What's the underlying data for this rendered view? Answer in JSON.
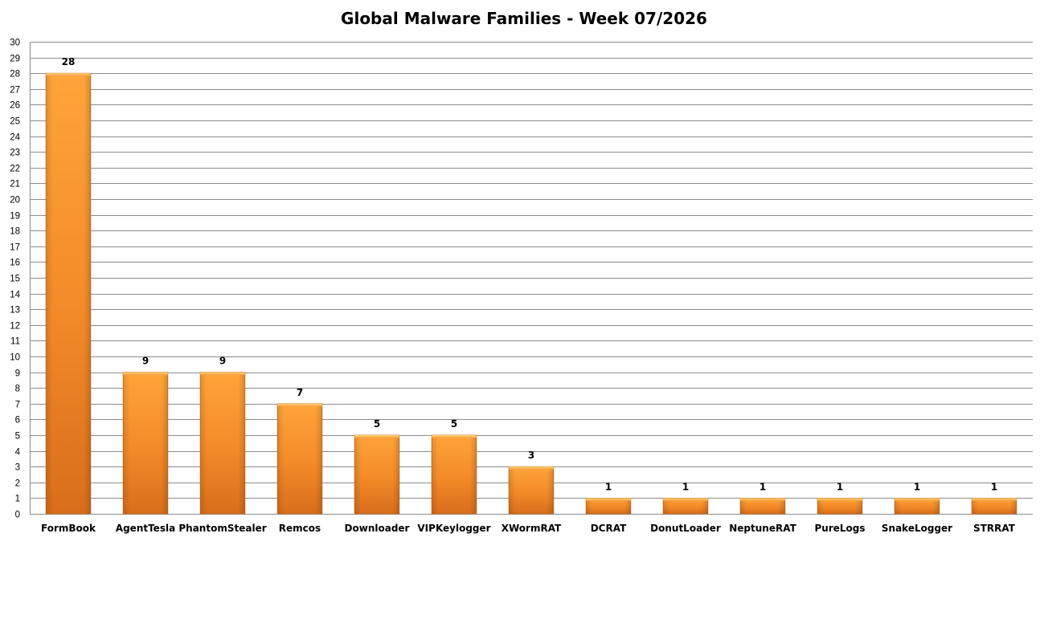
{
  "chart_data": {
    "type": "bar",
    "title": "Global Malware Families - Week 07/2026",
    "categories": [
      "FormBook",
      "AgentTesla",
      "PhantomStealer",
      "Remcos",
      "Downloader",
      "VIPKeylogger",
      "XWormRAT",
      "DCRAT",
      "DonutLoader",
      "NeptuneRAT",
      "PureLogs",
      "SnakeLogger",
      "STRRAT"
    ],
    "values": [
      28,
      9,
      9,
      7,
      5,
      5,
      3,
      1,
      1,
      1,
      1,
      1,
      1
    ],
    "xlabel": "",
    "ylabel": "",
    "ylim": [
      0,
      30
    ],
    "ytick_step": 1,
    "grid": true,
    "legend": "none",
    "bar_color": "#F4922B"
  }
}
